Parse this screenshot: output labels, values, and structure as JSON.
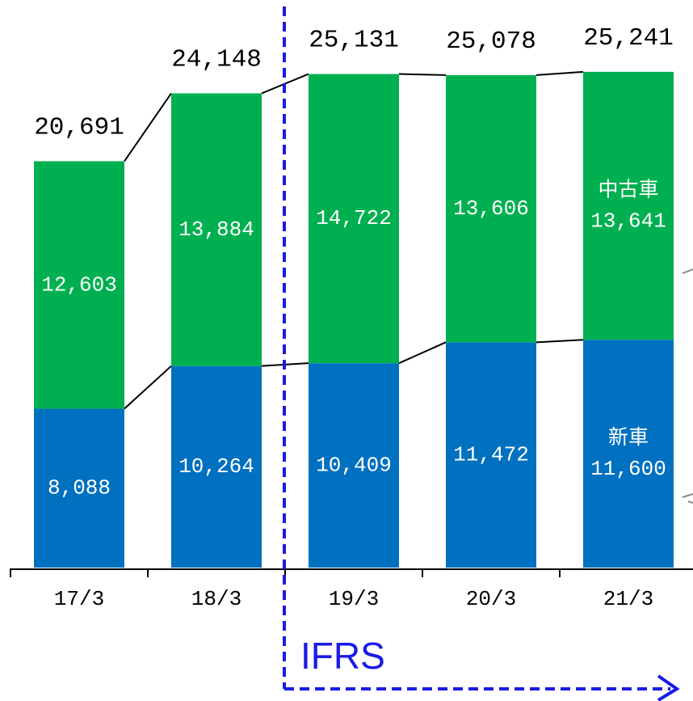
{
  "chart_data": {
    "type": "stacked-bar",
    "categories": [
      "17/3",
      "18/3",
      "19/3",
      "20/3",
      "21/3"
    ],
    "series": [
      {
        "name": "新車",
        "color": "#0070c0",
        "values": [
          8088,
          10264,
          10409,
          11472,
          11600
        ],
        "value_labels": [
          "8,088",
          "10,264",
          "10,409",
          "11,472",
          "11,600"
        ]
      },
      {
        "name": "中古車",
        "color": "#00b050",
        "values": [
          12603,
          13884,
          14722,
          13606,
          13641
        ],
        "value_labels": [
          "12,603",
          "13,884",
          "14,722",
          "13,606",
          "13,641"
        ]
      }
    ],
    "totals": {
      "values": [
        20691,
        24148,
        25131,
        25078,
        25241
      ],
      "value_labels": [
        "20,691",
        "24,148",
        "25,131",
        "25,078",
        "25,241"
      ]
    },
    "ylim": [
      0,
      28900
    ],
    "annotation": "IFRS"
  }
}
